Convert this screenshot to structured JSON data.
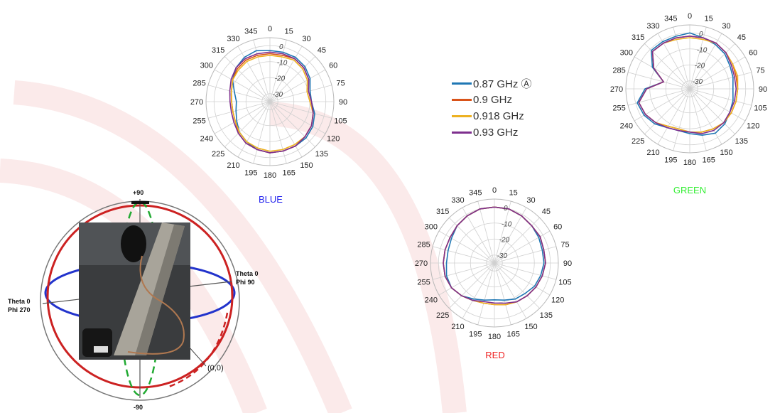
{
  "legend": [
    {
      "label": "0.87 GHz Ⓐ",
      "color": "#1f77b4"
    },
    {
      "label": "0.9 GHz",
      "color": "#d95319"
    },
    {
      "label": "0.918 GHz",
      "color": "#edb120"
    },
    {
      "label": "0.93 GHz",
      "color": "#7e2f8e"
    }
  ],
  "chart_data": [
    {
      "type": "polar",
      "title": "BLUE",
      "title_color": "#2222ee",
      "angle_ticks": [
        "0",
        "15",
        "30",
        "45",
        "60",
        "75",
        "90",
        "105",
        "120",
        "135",
        "150",
        "165",
        "180",
        "195",
        "210",
        "225",
        "240",
        "255",
        "270",
        "285",
        "300",
        "315",
        "330",
        "345"
      ],
      "radial_ticks": [
        "0",
        "-10",
        "-20",
        "-30"
      ],
      "rlim": [
        -35,
        5
      ],
      "angles": [
        0,
        15,
        30,
        45,
        60,
        75,
        90,
        105,
        120,
        135,
        150,
        165,
        180,
        195,
        210,
        225,
        240,
        255,
        270,
        285,
        300,
        315,
        330,
        345
      ],
      "series": [
        {
          "name": "0.87 GHz",
          "values": [
            -3,
            -3,
            -3,
            -4,
            -6,
            -9,
            -9,
            -6,
            -4,
            -3,
            -3,
            -3,
            -3,
            -4,
            -6,
            -8,
            -11,
            -13,
            -14,
            -12,
            -8,
            -5,
            -3,
            -2
          ]
        },
        {
          "name": "0.9 GHz",
          "values": [
            -5,
            -5,
            -4,
            -5,
            -7,
            -10,
            -9,
            -7,
            -5,
            -4,
            -3,
            -3,
            -3,
            -4,
            -5,
            -7,
            -10,
            -11,
            -11,
            -10,
            -8,
            -6,
            -5,
            -5
          ]
        },
        {
          "name": "0.918 GHz",
          "values": [
            -6,
            -6,
            -5,
            -6,
            -8,
            -11,
            -10,
            -7,
            -5,
            -4,
            -4,
            -4,
            -4,
            -5,
            -6,
            -8,
            -10,
            -11,
            -11,
            -10,
            -8,
            -7,
            -6,
            -6
          ]
        },
        {
          "name": "0.93 GHz",
          "values": [
            -4,
            -4,
            -4,
            -5,
            -7,
            -10,
            -9,
            -7,
            -5,
            -4,
            -3,
            -3,
            -3,
            -4,
            -5,
            -7,
            -9,
            -10,
            -10,
            -9,
            -7,
            -5,
            -4,
            -4
          ]
        }
      ]
    },
    {
      "type": "polar",
      "title": "GREEN",
      "title_color": "#33ee33",
      "angle_ticks": [
        "0",
        "15",
        "30",
        "45",
        "60",
        "75",
        "90",
        "105",
        "120",
        "135",
        "150",
        "165",
        "180",
        "195",
        "210",
        "225",
        "240",
        "255",
        "270",
        "285",
        "300",
        "315",
        "330",
        "345"
      ],
      "radial_ticks": [
        "0",
        "-10",
        "-20",
        "-30"
      ],
      "rlim": [
        -35,
        5
      ],
      "angles": [
        0,
        15,
        30,
        45,
        60,
        75,
        90,
        105,
        120,
        135,
        150,
        165,
        180,
        195,
        210,
        225,
        240,
        255,
        270,
        285,
        300,
        315,
        330,
        345
      ],
      "series": [
        {
          "name": "0.87 GHz",
          "values": [
            0,
            -2,
            -3,
            -4,
            -6,
            -7,
            -8,
            -7,
            -6,
            -4,
            -3,
            -5,
            -7,
            -8,
            -7,
            -4,
            -2,
            -1,
            -7,
            -18,
            -8,
            -1,
            -1,
            -1
          ]
        },
        {
          "name": "0.9 GHz",
          "values": [
            -2,
            -2,
            -2,
            -3,
            -4,
            -5,
            -5,
            -5,
            -5,
            -5,
            -6,
            -7,
            -8,
            -9,
            -8,
            -5,
            -3,
            -2,
            -8,
            -18,
            -9,
            -2,
            -2,
            -2
          ]
        },
        {
          "name": "0.918 GHz",
          "values": [
            -3,
            -3,
            -2,
            -3,
            -4,
            -4,
            -5,
            -5,
            -5,
            -5,
            -6,
            -7,
            -8,
            -9,
            -8,
            -5,
            -3,
            -2,
            -8,
            -18,
            -9,
            -2,
            -2,
            -3
          ]
        },
        {
          "name": "0.93 GHz",
          "values": [
            -2,
            -2,
            -2,
            -3,
            -5,
            -6,
            -6,
            -6,
            -6,
            -5,
            -5,
            -6,
            -8,
            -8,
            -7,
            -5,
            -3,
            -2,
            -8,
            -18,
            -9,
            -2,
            -2,
            -2
          ]
        }
      ]
    },
    {
      "type": "polar",
      "title": "RED",
      "title_color": "#ee2222",
      "angle_ticks": [
        "0",
        "15",
        "30",
        "45",
        "60",
        "75",
        "90",
        "105",
        "120",
        "135",
        "150",
        "165",
        "180",
        "195",
        "210",
        "225",
        "240",
        "255",
        "270",
        "285",
        "300",
        "315",
        "330",
        "345"
      ],
      "radial_ticks": [
        "0",
        "-10",
        "-20",
        "-30"
      ],
      "rlim": [
        -35,
        5
      ],
      "angles": [
        0,
        15,
        30,
        45,
        60,
        75,
        90,
        105,
        120,
        135,
        150,
        165,
        180,
        195,
        210,
        225,
        240,
        255,
        270,
        285,
        300,
        315,
        330,
        345
      ],
      "series": [
        {
          "name": "0.87 GHz",
          "values": [
            0,
            0,
            -1,
            -2,
            -3,
            -4,
            -4,
            -5,
            -6,
            -8,
            -9,
            -11,
            -12,
            -11,
            -9,
            -6,
            -4,
            -4,
            -5,
            -5,
            -4,
            -2,
            -1,
            0
          ]
        },
        {
          "name": "0.9 GHz",
          "values": [
            0,
            0,
            -1,
            -2,
            -2,
            -3,
            -3,
            -4,
            -5,
            -6,
            -7,
            -8,
            -9,
            -9,
            -8,
            -6,
            -4,
            -3,
            -3,
            -3,
            -3,
            -2,
            -1,
            0
          ]
        },
        {
          "name": "0.918 GHz",
          "values": [
            0,
            0,
            -1,
            -2,
            -2,
            -3,
            -3,
            -4,
            -5,
            -6,
            -7,
            -8,
            -9,
            -9,
            -8,
            -6,
            -4,
            -3,
            -3,
            -3,
            -3,
            -2,
            -1,
            0
          ]
        },
        {
          "name": "0.93 GHz",
          "values": [
            0,
            0,
            -1,
            -2,
            -2,
            -3,
            -3,
            -4,
            -5,
            -6,
            -7,
            -9,
            -10,
            -10,
            -8,
            -6,
            -4,
            -3,
            -3,
            -3,
            -3,
            -2,
            -1,
            0
          ]
        }
      ]
    }
  ],
  "sphere_labels": {
    "top": "+90",
    "bottom": "-90",
    "right_1": "Theta 0",
    "right_2": "Phi 90",
    "left_1": "Theta 0",
    "left_2": "Phi 270",
    "origin": "(0,0)"
  }
}
